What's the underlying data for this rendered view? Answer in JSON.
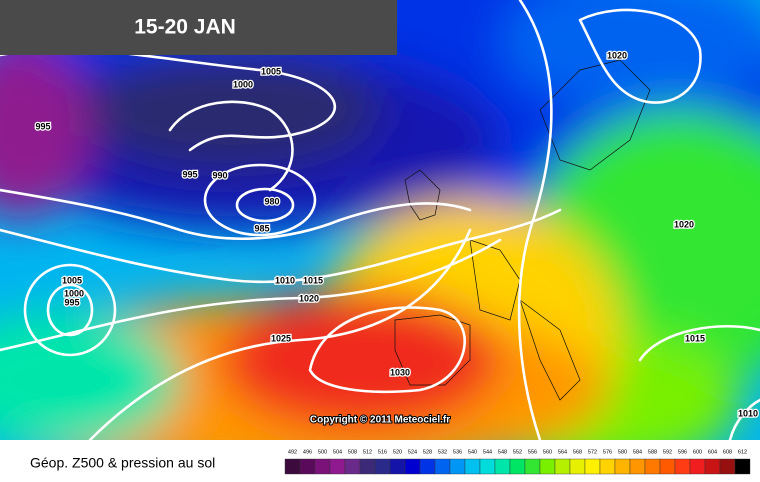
{
  "header": {
    "title": "15-20 JAN"
  },
  "isobar_labels": [
    "1005",
    "1000",
    "995",
    "995",
    "990",
    "980",
    "985",
    "1020",
    "1020",
    "1005",
    "1000",
    "995",
    "1010",
    "1015",
    "1020",
    "1025",
    "1030",
    "1015",
    "1010"
  ],
  "copyright": "Copyright © 2011 Meteociel.fr",
  "legend": {
    "caption": "Géop. Z500 & pression au sol",
    "scale": [
      492,
      496,
      500,
      504,
      508,
      512,
      516,
      520,
      524,
      528,
      532,
      536,
      540,
      544,
      548,
      552,
      556,
      560,
      564,
      568,
      572,
      576,
      580,
      584,
      588,
      592,
      596,
      600,
      604,
      608,
      612
    ],
    "colors": [
      "#3c0a3c",
      "#5a0a5a",
      "#7a127a",
      "#8f1a8f",
      "#6a2a8a",
      "#3c2a78",
      "#2a2a8a",
      "#1414a8",
      "#0000d0",
      "#0032e6",
      "#0064f0",
      "#0096f5",
      "#00c0f0",
      "#00dcdc",
      "#00e6aa",
      "#00e664",
      "#32e632",
      "#78f000",
      "#b4f000",
      "#e6f000",
      "#fff000",
      "#ffd200",
      "#ffb400",
      "#ff9600",
      "#ff7800",
      "#ff5a00",
      "#ff3c14",
      "#f01e1e",
      "#c81414",
      "#961010",
      "#000000"
    ]
  }
}
